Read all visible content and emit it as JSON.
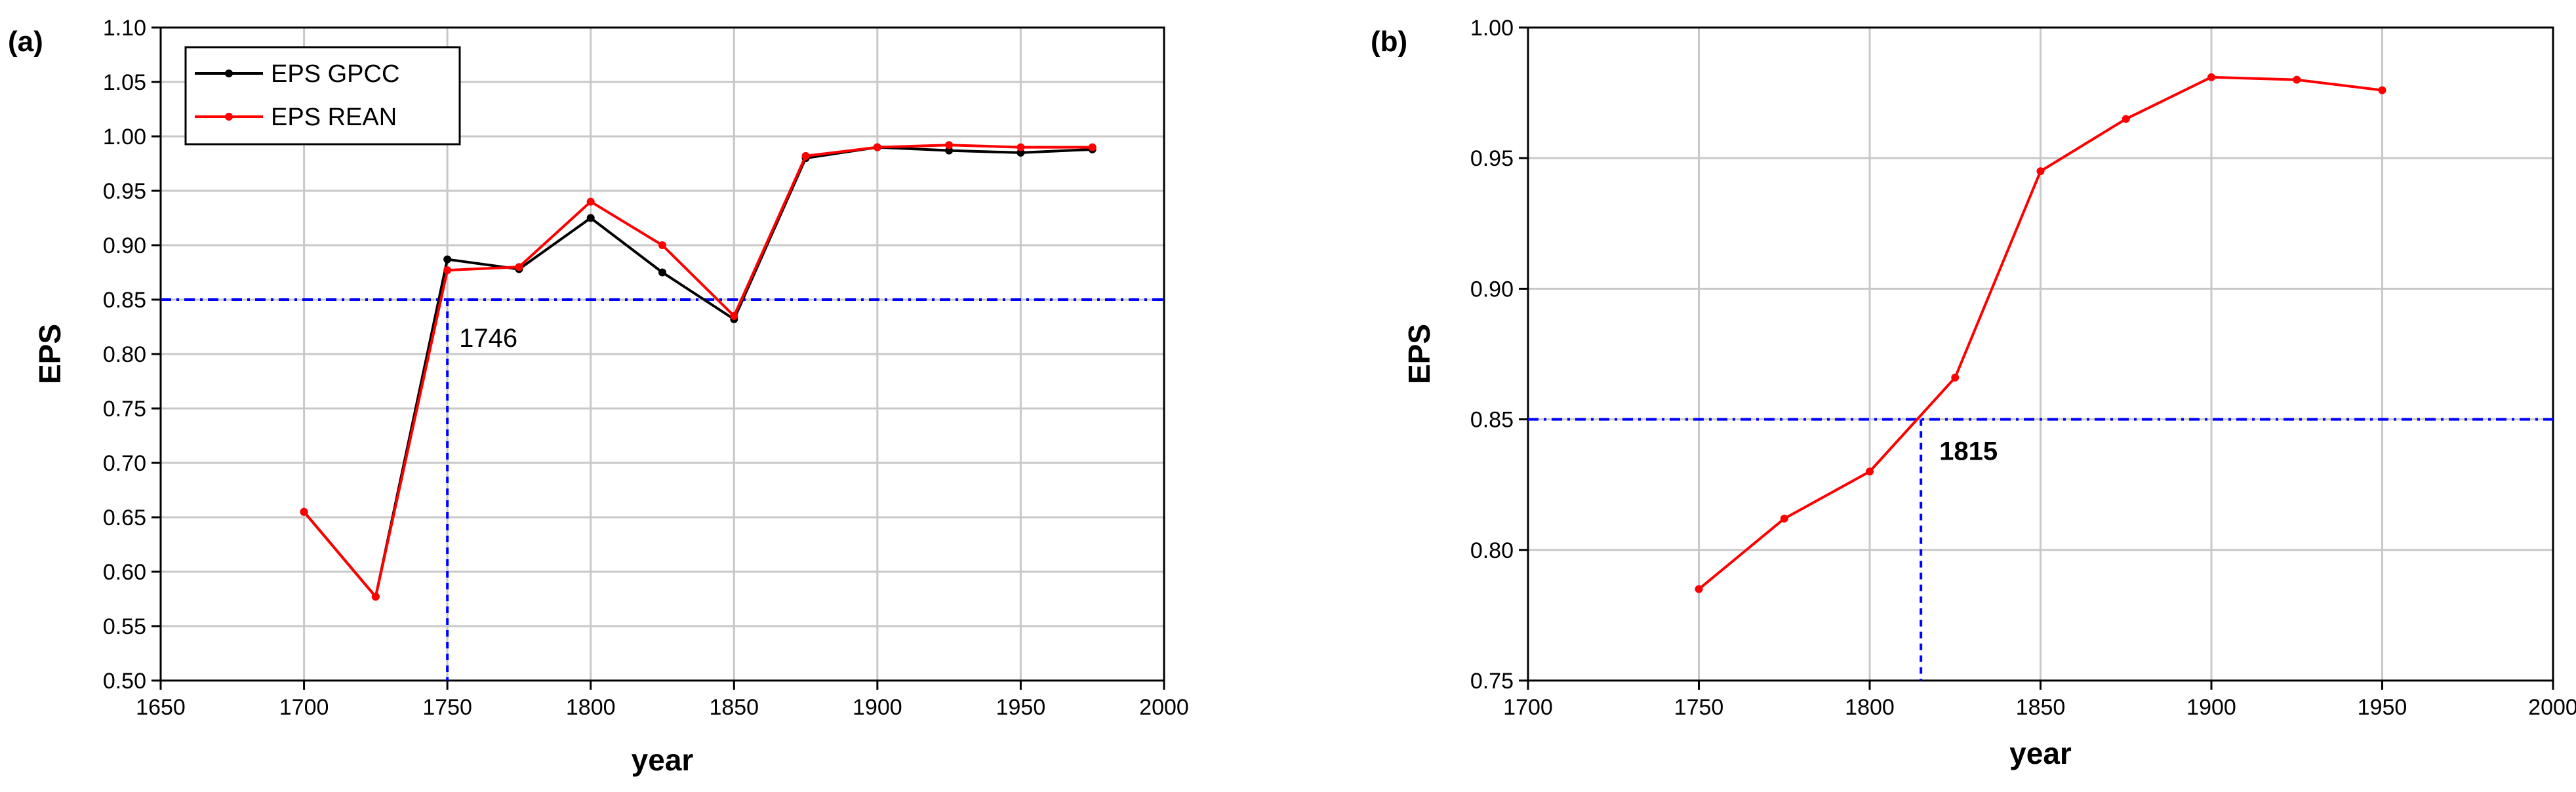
{
  "chart_data": [
    {
      "panel_label": "(a)",
      "type": "line",
      "xlabel": "year",
      "ylabel": "EPS",
      "xlim": [
        1650,
        2000
      ],
      "ylim": [
        0.5,
        1.1
      ],
      "xticks": [
        1650,
        1700,
        1750,
        1800,
        1850,
        1900,
        1950,
        2000
      ],
      "yticks": [
        0.5,
        0.55,
        0.6,
        0.65,
        0.7,
        0.75,
        0.8,
        0.85,
        0.9,
        0.95,
        1.0,
        1.05,
        1.1
      ],
      "ytick_decimals": 2,
      "grid": true,
      "legend_position": "top-left",
      "series": [
        {
          "name": "EPS GPCC",
          "color": "#000000",
          "x": [
            1700,
            1725,
            1750,
            1775,
            1800,
            1825,
            1850,
            1875,
            1900,
            1925,
            1950,
            1975
          ],
          "values": [
            0.655,
            0.577,
            0.887,
            0.878,
            0.925,
            0.875,
            0.832,
            0.98,
            0.99,
            0.987,
            0.985,
            0.988
          ]
        },
        {
          "name": "EPS REAN",
          "color": "#ff0000",
          "x": [
            1700,
            1725,
            1750,
            1775,
            1800,
            1825,
            1850,
            1875,
            1900,
            1925,
            1950,
            1975
          ],
          "values": [
            0.655,
            0.577,
            0.877,
            0.88,
            0.94,
            0.9,
            0.835,
            0.982,
            0.99,
            0.992,
            0.99,
            0.99
          ]
        }
      ],
      "threshold": {
        "y": 0.85,
        "x": 1750,
        "color": "#0000ff"
      },
      "annotation": {
        "text": "1746",
        "x": 1750,
        "y": 0.85
      }
    },
    {
      "panel_label": "(b)",
      "type": "line",
      "xlabel": "year",
      "ylabel": "EPS",
      "xlim": [
        1700,
        2000
      ],
      "ylim": [
        0.75,
        1.0
      ],
      "xticks": [
        1700,
        1750,
        1800,
        1850,
        1900,
        1950,
        2000
      ],
      "yticks": [
        0.75,
        0.8,
        0.85,
        0.9,
        0.95,
        1.0
      ],
      "ytick_decimals": 2,
      "grid": true,
      "series": [
        {
          "color": "#ff0000",
          "x": [
            1750,
            1775,
            1800,
            1825,
            1850,
            1875,
            1900,
            1925,
            1950
          ],
          "values": [
            0.785,
            0.812,
            0.83,
            0.866,
            0.945,
            0.965,
            0.981,
            0.98,
            0.976
          ]
        }
      ],
      "threshold": {
        "y": 0.85,
        "x": 1815,
        "color": "#0000ff"
      },
      "annotation": {
        "text": "1815",
        "x": 1815,
        "y": 0.85
      }
    }
  ]
}
